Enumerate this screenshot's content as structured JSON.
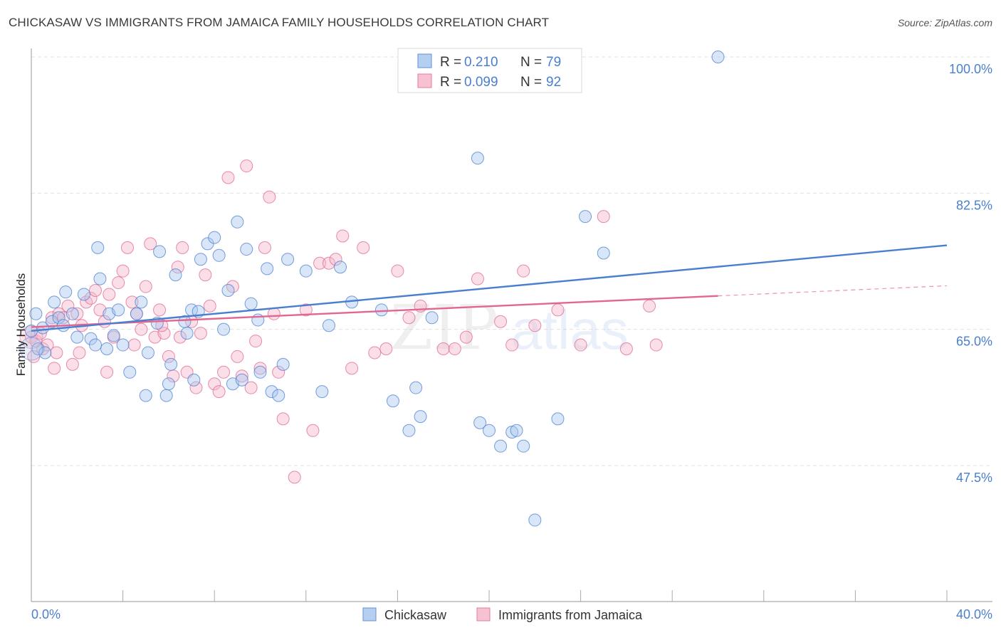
{
  "title": "CHICKASAW VS IMMIGRANTS FROM JAMAICA FAMILY HOUSEHOLDS CORRELATION CHART",
  "source": "Source: ZipAtlas.com",
  "watermark": {
    "zip": "ZIP",
    "atlas": "atlas"
  },
  "colors": {
    "blue": "#4a7fd0",
    "blue_fill": "#a9c7ee",
    "pink": "#e2668f",
    "pink_fill": "#f5b8cb",
    "grid": "#e1e1e1"
  },
  "legend": {
    "row1": {
      "r_label": "R =",
      "r_value": "0.210",
      "n_label": "N =",
      "n_value": "79"
    },
    "row2": {
      "r_label": "R =",
      "r_value": "0.099",
      "n_label": "N =",
      "n_value": "92"
    }
  },
  "chart_data": {
    "type": "scatter",
    "title": "CHICKASAW VS IMMIGRANTS FROM JAMAICA FAMILY HOUSEHOLDS CORRELATION CHART",
    "xlabel": "",
    "ylabel": "Family Households",
    "xlim": [
      0,
      40
    ],
    "ylim": [
      32,
      100
    ],
    "x_tick_labels": [
      "0.0%",
      "40.0%"
    ],
    "y_ticks": [
      47.5,
      65.0,
      82.5,
      100.0
    ],
    "y_tick_labels": [
      "47.5%",
      "65.0%",
      "82.5%",
      "100.0%"
    ],
    "grid": true,
    "legend_position": "top-center",
    "series": [
      {
        "name": "Chickasaw",
        "color": "#4a7fd0",
        "r": 0.21,
        "n": 79,
        "trend": {
          "x": [
            0,
            40
          ],
          "y": [
            64.8,
            75.8
          ]
        },
        "points": [
          [
            0.0,
            64.8
          ],
          [
            0.2,
            67.0
          ],
          [
            0.3,
            62.5
          ],
          [
            0.5,
            65.2
          ],
          [
            0.6,
            62.0
          ],
          [
            0.9,
            66.0
          ],
          [
            1.0,
            68.5
          ],
          [
            1.2,
            66.5
          ],
          [
            1.4,
            65.5
          ],
          [
            1.5,
            69.8
          ],
          [
            1.8,
            67.0
          ],
          [
            2.0,
            64.0
          ],
          [
            2.3,
            69.5
          ],
          [
            2.6,
            63.8
          ],
          [
            2.8,
            63.0
          ],
          [
            2.9,
            75.5
          ],
          [
            3.0,
            71.5
          ],
          [
            3.3,
            62.5
          ],
          [
            3.4,
            67.0
          ],
          [
            3.6,
            64.2
          ],
          [
            3.8,
            67.5
          ],
          [
            4.0,
            63.0
          ],
          [
            4.3,
            59.5
          ],
          [
            4.6,
            67.0
          ],
          [
            4.8,
            68.5
          ],
          [
            5.0,
            56.5
          ],
          [
            5.1,
            62.0
          ],
          [
            5.5,
            65.8
          ],
          [
            5.6,
            75.0
          ],
          [
            5.9,
            56.5
          ],
          [
            6.0,
            58.0
          ],
          [
            6.1,
            60.5
          ],
          [
            6.3,
            72.0
          ],
          [
            6.7,
            66.0
          ],
          [
            6.8,
            64.5
          ],
          [
            7.0,
            67.5
          ],
          [
            7.1,
            58.5
          ],
          [
            7.3,
            67.3
          ],
          [
            7.4,
            74.0
          ],
          [
            7.7,
            76.0
          ],
          [
            8.0,
            76.8
          ],
          [
            8.2,
            74.5
          ],
          [
            8.4,
            65.0
          ],
          [
            8.6,
            70.0
          ],
          [
            8.8,
            58.0
          ],
          [
            9.0,
            78.8
          ],
          [
            9.2,
            58.5
          ],
          [
            9.4,
            75.3
          ],
          [
            9.6,
            68.3
          ],
          [
            9.9,
            66.2
          ],
          [
            10.0,
            59.5
          ],
          [
            10.3,
            72.8
          ],
          [
            10.5,
            57.0
          ],
          [
            10.8,
            56.5
          ],
          [
            11.0,
            60.5
          ],
          [
            11.2,
            74.0
          ],
          [
            12.0,
            72.5
          ],
          [
            12.7,
            57.0
          ],
          [
            13.0,
            65.5
          ],
          [
            13.5,
            73.0
          ],
          [
            14.0,
            68.5
          ],
          [
            15.3,
            67.5
          ],
          [
            15.8,
            55.8
          ],
          [
            16.5,
            52.0
          ],
          [
            16.8,
            57.5
          ],
          [
            17.0,
            53.8
          ],
          [
            17.5,
            66.5
          ],
          [
            19.5,
            87.0
          ],
          [
            19.6,
            53.0
          ],
          [
            20.0,
            52.0
          ],
          [
            20.5,
            50.0
          ],
          [
            21.0,
            51.8
          ],
          [
            21.5,
            50.0
          ],
          [
            22.0,
            40.5
          ],
          [
            21.2,
            52.0
          ],
          [
            23.0,
            53.5
          ],
          [
            24.2,
            79.5
          ],
          [
            25.0,
            74.8
          ],
          [
            30.0,
            100.0
          ]
        ]
      },
      {
        "name": "Immigrants from Jamaica",
        "color": "#e2668f",
        "r": 0.099,
        "n": 92,
        "trend": {
          "x": [
            0,
            30
          ],
          "y": [
            65.3,
            69.3
          ]
        },
        "trend_dashed": {
          "x": [
            30,
            40
          ],
          "y": [
            69.3,
            70.6
          ]
        },
        "points": [
          [
            0.0,
            64.0
          ],
          [
            0.2,
            63.5
          ],
          [
            0.4,
            64.5
          ],
          [
            0.5,
            62.5
          ],
          [
            0.7,
            63.0
          ],
          [
            0.9,
            66.5
          ],
          [
            1.0,
            60.0
          ],
          [
            1.2,
            67.0
          ],
          [
            1.4,
            66.5
          ],
          [
            1.6,
            68.0
          ],
          [
            1.8,
            60.5
          ],
          [
            2.0,
            67.0
          ],
          [
            2.2,
            65.5
          ],
          [
            2.4,
            68.5
          ],
          [
            2.6,
            69.0
          ],
          [
            2.8,
            70.0
          ],
          [
            3.0,
            67.5
          ],
          [
            3.2,
            66.0
          ],
          [
            3.4,
            69.5
          ],
          [
            3.6,
            64.0
          ],
          [
            3.8,
            71.0
          ],
          [
            4.0,
            72.5
          ],
          [
            4.2,
            75.5
          ],
          [
            4.4,
            68.5
          ],
          [
            4.6,
            67.0
          ],
          [
            4.8,
            65.0
          ],
          [
            5.0,
            70.5
          ],
          [
            5.2,
            76.0
          ],
          [
            5.4,
            64.0
          ],
          [
            5.6,
            67.5
          ],
          [
            5.8,
            64.5
          ],
          [
            6.0,
            61.5
          ],
          [
            6.2,
            59.0
          ],
          [
            6.4,
            73.0
          ],
          [
            6.6,
            75.5
          ],
          [
            6.8,
            59.5
          ],
          [
            7.0,
            66.0
          ],
          [
            7.2,
            57.5
          ],
          [
            7.4,
            64.5
          ],
          [
            7.6,
            72.0
          ],
          [
            7.8,
            68.0
          ],
          [
            8.0,
            58.0
          ],
          [
            8.2,
            57.0
          ],
          [
            8.4,
            59.5
          ],
          [
            8.6,
            84.5
          ],
          [
            8.8,
            70.5
          ],
          [
            9.0,
            61.5
          ],
          [
            9.2,
            59.0
          ],
          [
            9.4,
            86.0
          ],
          [
            9.6,
            57.5
          ],
          [
            9.8,
            63.5
          ],
          [
            10.0,
            60.0
          ],
          [
            10.2,
            75.5
          ],
          [
            10.4,
            82.0
          ],
          [
            10.6,
            67.0
          ],
          [
            10.8,
            59.5
          ],
          [
            11.0,
            53.5
          ],
          [
            11.5,
            46.0
          ],
          [
            12.0,
            67.5
          ],
          [
            12.3,
            52.0
          ],
          [
            12.6,
            73.5
          ],
          [
            13.0,
            73.5
          ],
          [
            13.3,
            74.0
          ],
          [
            13.6,
            77.0
          ],
          [
            14.0,
            60.0
          ],
          [
            14.5,
            75.5
          ],
          [
            15.0,
            62.0
          ],
          [
            15.5,
            62.5
          ],
          [
            16.0,
            72.5
          ],
          [
            16.5,
            66.5
          ],
          [
            17.0,
            68.0
          ],
          [
            18.0,
            62.5
          ],
          [
            18.5,
            62.5
          ],
          [
            19.0,
            64.0
          ],
          [
            19.5,
            71.5
          ],
          [
            20.5,
            66.0
          ],
          [
            21.0,
            63.0
          ],
          [
            21.5,
            72.5
          ],
          [
            22.0,
            65.5
          ],
          [
            23.0,
            67.5
          ],
          [
            24.0,
            63.0
          ],
          [
            25.0,
            79.5
          ],
          [
            26.0,
            62.5
          ],
          [
            27.0,
            68.0
          ],
          [
            27.3,
            63.0
          ],
          [
            6.5,
            64.0
          ],
          [
            3.3,
            59.5
          ],
          [
            2.1,
            62.0
          ],
          [
            0.1,
            61.5
          ],
          [
            1.1,
            62.0
          ],
          [
            4.5,
            63.0
          ],
          [
            5.7,
            65.5
          ]
        ]
      }
    ]
  },
  "bottom_legend": {
    "item1": "Chickasaw",
    "item2": "Immigrants from Jamaica"
  }
}
